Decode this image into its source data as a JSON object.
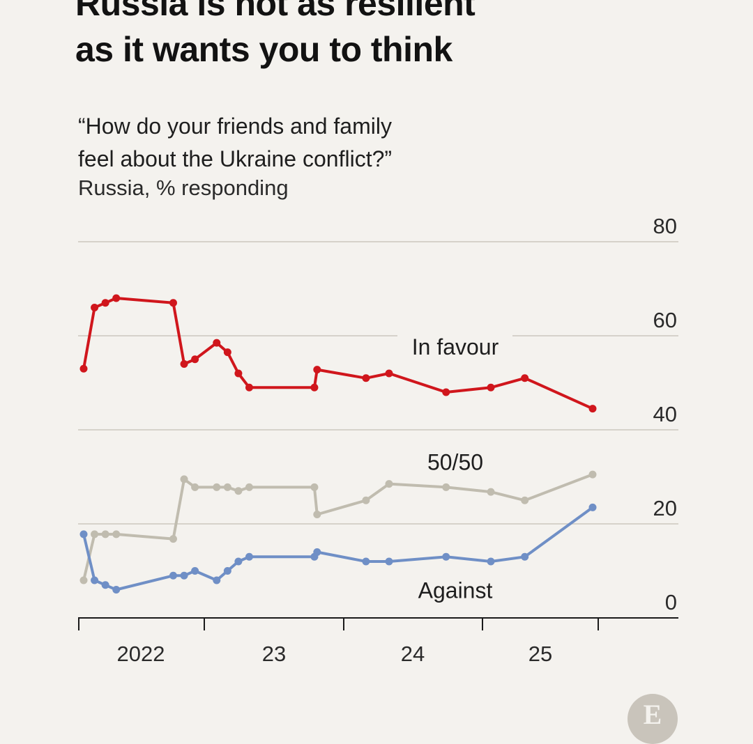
{
  "headline": {
    "line1": "Russia is not as resilient",
    "line2": "as it wants you to think"
  },
  "subtitle": {
    "line1": "“How do your friends and family",
    "line2": "feel about the Ukraine conflict?”"
  },
  "unit_label": "Russia, % responding",
  "logo_letter": "E",
  "chart_data": {
    "type": "line",
    "title": "“How do your friends and family feel about the Ukraine conflict?”",
    "ylabel": "Russia, % responding",
    "ylim": [
      0,
      80
    ],
    "yticks": [
      0,
      20,
      40,
      60,
      80
    ],
    "xlim": [
      2022.0,
      2026.0
    ],
    "xticks": [
      2022.0,
      2023.0,
      2024.0,
      2025.0,
      2025.83
    ],
    "xtick_labels": [
      {
        "label": "2022",
        "x": 2022.5
      },
      {
        "label": "23",
        "x": 2023.5
      },
      {
        "label": "24",
        "x": 2024.5
      },
      {
        "label": "25",
        "x": 2025.4
      }
    ],
    "grid": "horizontal",
    "series": [
      {
        "name": "In favour",
        "color": "#d0161c",
        "label_x": 2024.8,
        "label_y": 56,
        "points": [
          [
            2022.04,
            53
          ],
          [
            2022.12,
            66
          ],
          [
            2022.2,
            67
          ],
          [
            2022.28,
            68
          ],
          [
            2022.7,
            67
          ],
          [
            2022.78,
            54
          ],
          [
            2022.86,
            55
          ],
          [
            2023.02,
            58.5
          ],
          [
            2023.1,
            56.5
          ],
          [
            2023.18,
            52
          ],
          [
            2023.26,
            49
          ],
          [
            2023.74,
            49
          ],
          [
            2023.76,
            52.8
          ],
          [
            2024.12,
            51
          ],
          [
            2024.29,
            52
          ],
          [
            2024.71,
            48
          ],
          [
            2025.04,
            49
          ],
          [
            2025.29,
            51
          ],
          [
            2025.79,
            44.5
          ]
        ]
      },
      {
        "name": "50/50",
        "color": "#c0bcaf",
        "label_x": 2024.8,
        "label_y": 31.5,
        "points": [
          [
            2022.04,
            8
          ],
          [
            2022.12,
            17.8
          ],
          [
            2022.2,
            17.8
          ],
          [
            2022.28,
            17.8
          ],
          [
            2022.7,
            16.8
          ],
          [
            2022.78,
            29.5
          ],
          [
            2022.86,
            27.8
          ],
          [
            2023.02,
            27.8
          ],
          [
            2023.1,
            27.8
          ],
          [
            2023.18,
            27
          ],
          [
            2023.26,
            27.8
          ],
          [
            2023.74,
            27.8
          ],
          [
            2023.76,
            22
          ],
          [
            2024.12,
            25
          ],
          [
            2024.29,
            28.5
          ],
          [
            2024.71,
            27.8
          ],
          [
            2025.04,
            26.8
          ],
          [
            2025.29,
            25
          ],
          [
            2025.79,
            30.5
          ]
        ]
      },
      {
        "name": "Against",
        "color": "#6f8fc6",
        "label_x": 2024.8,
        "label_y": 4.2,
        "points": [
          [
            2022.04,
            17.8
          ],
          [
            2022.12,
            8
          ],
          [
            2022.2,
            7
          ],
          [
            2022.28,
            6
          ],
          [
            2022.7,
            9
          ],
          [
            2022.78,
            9
          ],
          [
            2022.86,
            10
          ],
          [
            2023.02,
            8
          ],
          [
            2023.1,
            10
          ],
          [
            2023.18,
            12
          ],
          [
            2023.26,
            13
          ],
          [
            2023.74,
            13
          ],
          [
            2023.76,
            14
          ],
          [
            2024.12,
            12
          ],
          [
            2024.29,
            12
          ],
          [
            2024.71,
            13
          ],
          [
            2025.04,
            12
          ],
          [
            2025.29,
            13
          ],
          [
            2025.79,
            23.5
          ]
        ]
      }
    ]
  }
}
